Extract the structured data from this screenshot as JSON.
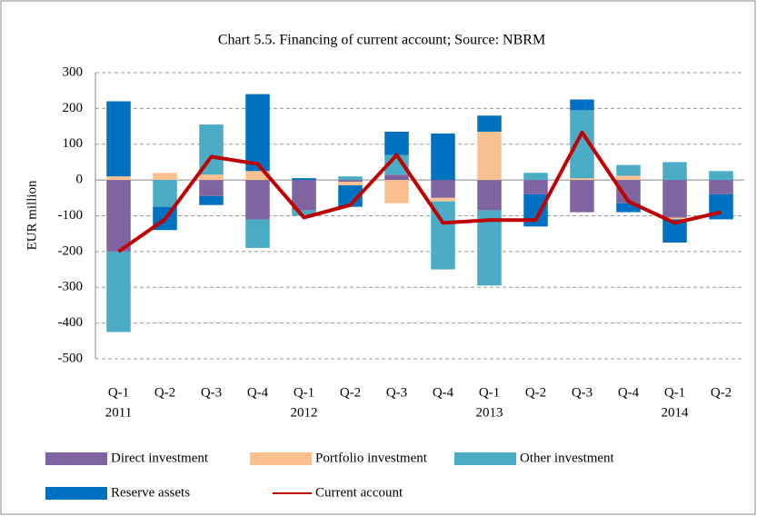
{
  "chart_data": {
    "type": "bar",
    "stacked": true,
    "title": "Chart 5.5. Financing of current account; Source: NBRM",
    "y_label": "EUR million",
    "categories": [
      "Q-1",
      "Q-2",
      "Q-3",
      "Q-4",
      "Q-1",
      "Q-2",
      "Q-3",
      "Q-4",
      "Q-1",
      "Q-2",
      "Q-3",
      "Q-4",
      "Q-1",
      "Q-2"
    ],
    "category_years": [
      "2011",
      null,
      null,
      null,
      "2012",
      null,
      null,
      null,
      "2013",
      null,
      null,
      null,
      "2014",
      null
    ],
    "series": [
      {
        "name": "Direct investment",
        "color": "#8064a2",
        "values": [
          -200,
          0,
          -45,
          -110,
          -85,
          -5,
          15,
          -50,
          -85,
          -40,
          -90,
          -65,
          -105,
          -40
        ]
      },
      {
        "name": "Portfolio investment",
        "color": "#fac090",
        "values": [
          10,
          20,
          15,
          25,
          0,
          -10,
          -65,
          -10,
          135,
          0,
          5,
          12,
          -5,
          0
        ]
      },
      {
        "name": "Other investment",
        "color": "#4bacc6",
        "values": [
          -225,
          -75,
          140,
          -80,
          -15,
          10,
          55,
          -190,
          -210,
          20,
          190,
          30,
          50,
          25
        ]
      },
      {
        "name": "Reserve assets",
        "color": "#0070c0",
        "values": [
          210,
          -65,
          -25,
          215,
          5,
          -60,
          65,
          130,
          45,
          -90,
          30,
          -25,
          -65,
          -70
        ]
      },
      {
        "name": "Current account",
        "color": "#c00000",
        "type": "line",
        "values": [
          -200,
          -110,
          65,
          45,
          -105,
          -70,
          70,
          -120,
          -112,
          -112,
          133,
          -60,
          -120,
          -90
        ]
      }
    ],
    "ylim": [
      -500,
      300
    ],
    "yticks": [
      -500,
      -400,
      -300,
      -200,
      -100,
      0,
      100,
      200,
      300
    ],
    "grid": true
  }
}
